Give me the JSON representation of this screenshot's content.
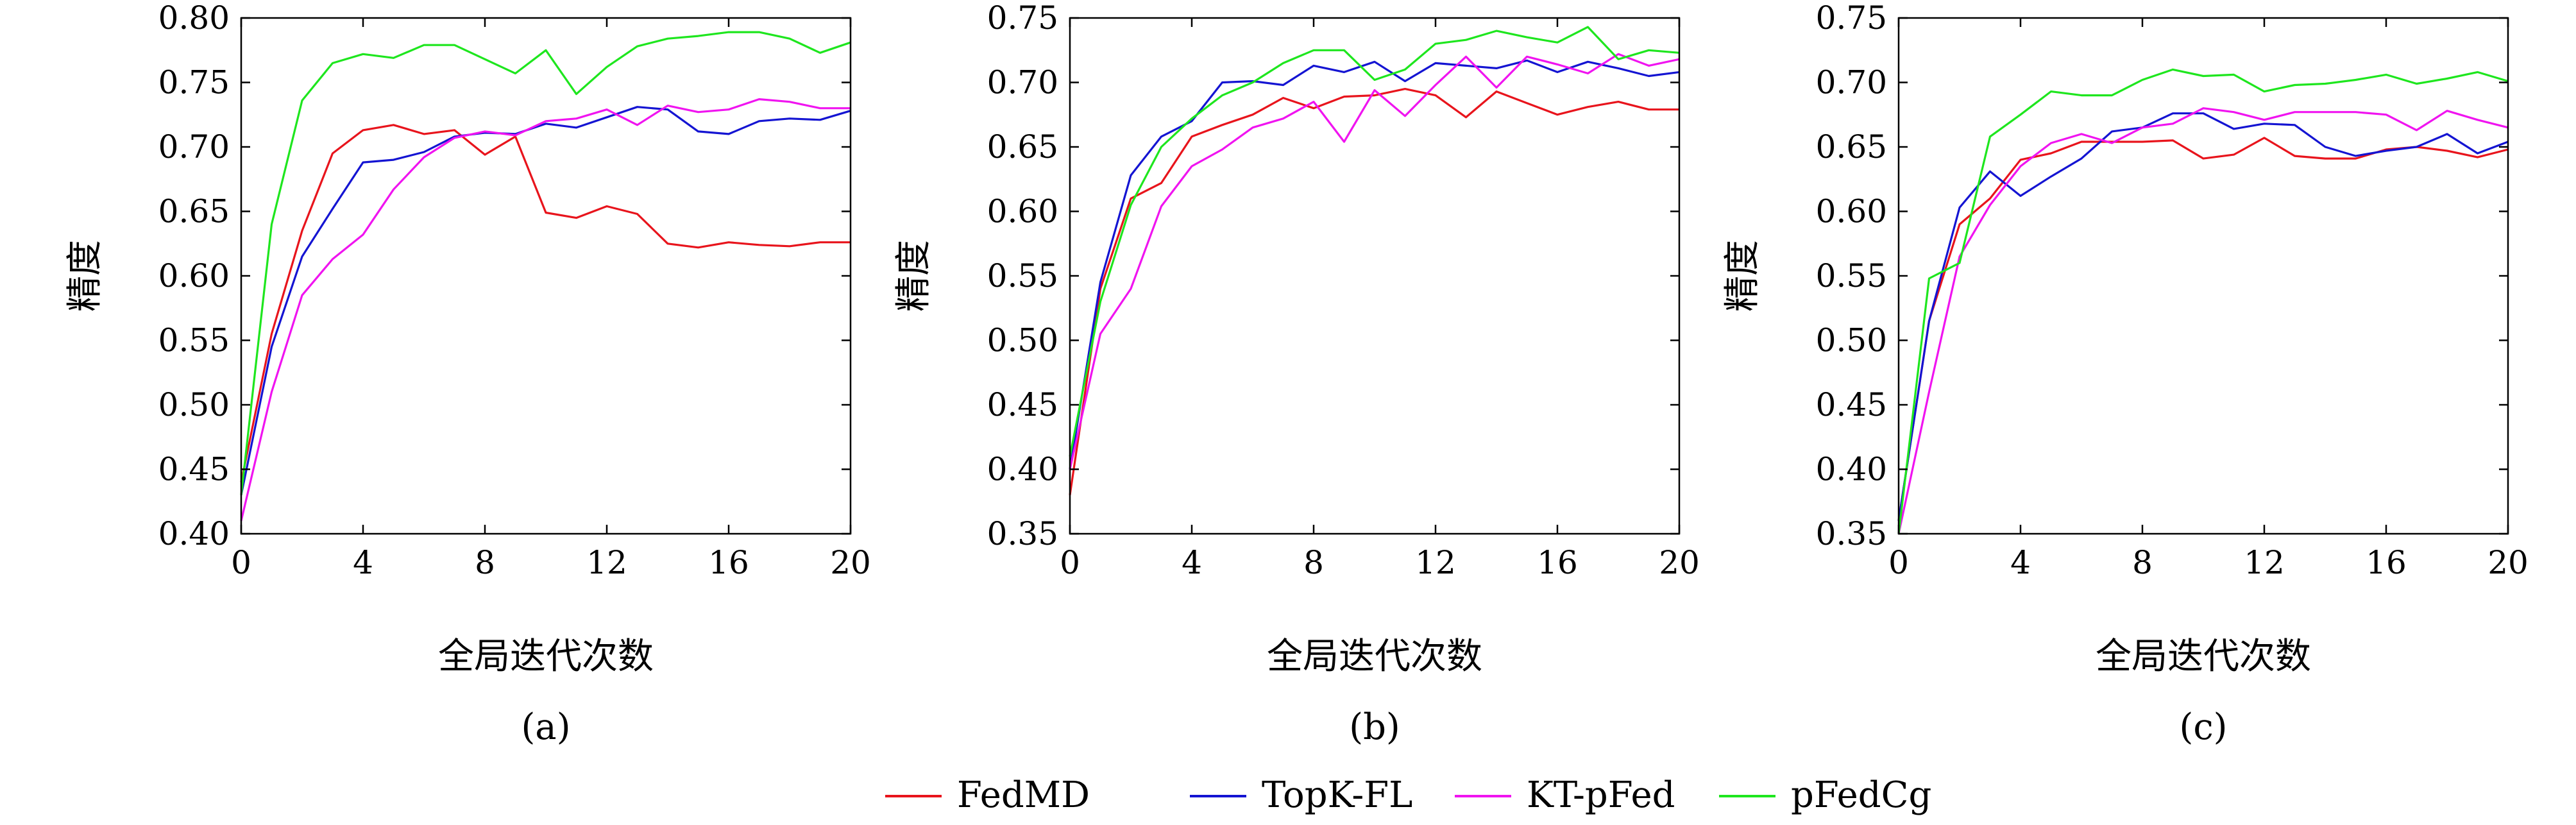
{
  "chart_data": [
    {
      "type": "line",
      "caption": "(a)",
      "xlabel": "全局迭代次数",
      "ylabel": "精度",
      "xlim": [
        0,
        20
      ],
      "ylim": [
        0.4,
        0.8
      ],
      "xticks": [
        0,
        4,
        8,
        12,
        16,
        20
      ],
      "yticks": [
        0.4,
        0.45,
        0.5,
        0.55,
        0.6,
        0.65,
        0.7,
        0.75,
        0.8
      ],
      "ytick_labels": [
        "0.40",
        "0.45",
        "0.50",
        "0.55",
        "0.60",
        "0.65",
        "0.70",
        "0.75",
        "0.80"
      ],
      "x": [
        0,
        1,
        2,
        3,
        4,
        5,
        6,
        7,
        8,
        9,
        10,
        11,
        12,
        13,
        14,
        15,
        16,
        17,
        18,
        19,
        20
      ],
      "series": [
        {
          "name": "FedMD",
          "values": [
            0.44,
            0.555,
            0.635,
            0.695,
            0.713,
            0.717,
            0.71,
            0.713,
            0.694,
            0.708,
            0.649,
            0.645,
            0.654,
            0.648,
            0.625,
            0.622,
            0.626,
            0.624,
            0.623,
            0.626,
            0.626
          ]
        },
        {
          "name": "TopK-FL",
          "values": [
            0.43,
            0.545,
            0.615,
            0.652,
            0.688,
            0.69,
            0.696,
            0.708,
            0.711,
            0.71,
            0.718,
            0.715,
            0.723,
            0.731,
            0.729,
            0.712,
            0.71,
            0.72,
            0.722,
            0.721,
            0.728
          ]
        },
        {
          "name": "KT-pFed",
          "values": [
            0.41,
            0.51,
            0.585,
            0.613,
            0.632,
            0.667,
            0.692,
            0.707,
            0.712,
            0.709,
            0.72,
            0.722,
            0.729,
            0.717,
            0.732,
            0.727,
            0.729,
            0.737,
            0.735,
            0.73,
            0.73
          ]
        },
        {
          "name": "pFedCg",
          "values": [
            0.43,
            0.64,
            0.736,
            0.765,
            0.772,
            0.769,
            0.779,
            0.779,
            0.768,
            0.757,
            0.775,
            0.741,
            0.762,
            0.778,
            0.784,
            0.786,
            0.789,
            0.789,
            0.784,
            0.773,
            0.781
          ]
        }
      ]
    },
    {
      "type": "line",
      "caption": "(b)",
      "xlabel": "全局迭代次数",
      "ylabel": "精度",
      "xlim": [
        0,
        20
      ],
      "ylim": [
        0.35,
        0.75
      ],
      "xticks": [
        0,
        4,
        8,
        12,
        16,
        20
      ],
      "yticks": [
        0.35,
        0.4,
        0.45,
        0.5,
        0.55,
        0.6,
        0.65,
        0.7,
        0.75
      ],
      "ytick_labels": [
        "0.35",
        "0.40",
        "0.45",
        "0.50",
        "0.55",
        "0.60",
        "0.65",
        "0.70",
        "0.75"
      ],
      "x": [
        0,
        1,
        2,
        3,
        4,
        5,
        6,
        7,
        8,
        9,
        10,
        11,
        12,
        13,
        14,
        15,
        16,
        17,
        18,
        19,
        20
      ],
      "series": [
        {
          "name": "FedMD",
          "values": [
            0.38,
            0.54,
            0.61,
            0.622,
            0.658,
            0.667,
            0.675,
            0.688,
            0.68,
            0.689,
            0.69,
            0.695,
            0.69,
            0.673,
            0.693,
            0.684,
            0.675,
            0.681,
            0.685,
            0.679,
            0.679
          ]
        },
        {
          "name": "TopK-FL",
          "values": [
            0.4,
            0.545,
            0.628,
            0.658,
            0.67,
            0.7,
            0.701,
            0.698,
            0.713,
            0.708,
            0.716,
            0.701,
            0.715,
            0.713,
            0.711,
            0.717,
            0.708,
            0.716,
            0.711,
            0.705,
            0.708
          ]
        },
        {
          "name": "KT-pFed",
          "values": [
            0.4,
            0.505,
            0.54,
            0.604,
            0.635,
            0.648,
            0.665,
            0.672,
            0.685,
            0.654,
            0.694,
            0.674,
            0.698,
            0.72,
            0.696,
            0.72,
            0.714,
            0.707,
            0.722,
            0.713,
            0.718
          ]
        },
        {
          "name": "pFedCg",
          "values": [
            0.41,
            0.53,
            0.605,
            0.65,
            0.672,
            0.69,
            0.7,
            0.715,
            0.725,
            0.725,
            0.702,
            0.71,
            0.73,
            0.733,
            0.74,
            0.735,
            0.731,
            0.743,
            0.718,
            0.725,
            0.723
          ]
        }
      ]
    },
    {
      "type": "line",
      "caption": "(c)",
      "xlabel": "全局迭代次数",
      "ylabel": "精度",
      "xlim": [
        0,
        20
      ],
      "ylim": [
        0.35,
        0.75
      ],
      "xticks": [
        0,
        4,
        8,
        12,
        16,
        20
      ],
      "yticks": [
        0.35,
        0.4,
        0.45,
        0.5,
        0.55,
        0.6,
        0.65,
        0.7,
        0.75
      ],
      "ytick_labels": [
        "0.35",
        "0.40",
        "0.45",
        "0.50",
        "0.55",
        "0.60",
        "0.65",
        "0.70",
        "0.75"
      ],
      "x": [
        0,
        1,
        2,
        3,
        4,
        5,
        6,
        7,
        8,
        9,
        10,
        11,
        12,
        13,
        14,
        15,
        16,
        17,
        18,
        19,
        20
      ],
      "series": [
        {
          "name": "FedMD",
          "values": [
            0.36,
            0.515,
            0.59,
            0.61,
            0.64,
            0.645,
            0.654,
            0.654,
            0.654,
            0.655,
            0.641,
            0.644,
            0.657,
            0.643,
            0.641,
            0.641,
            0.648,
            0.65,
            0.647,
            0.642,
            0.648
          ]
        },
        {
          "name": "TopK-FL",
          "values": [
            0.36,
            0.515,
            0.603,
            0.631,
            0.612,
            0.627,
            0.641,
            0.662,
            0.665,
            0.676,
            0.676,
            0.664,
            0.668,
            0.667,
            0.65,
            0.643,
            0.647,
            0.65,
            0.66,
            0.645,
            0.654
          ]
        },
        {
          "name": "KT-pFed",
          "values": [
            0.35,
            0.46,
            0.565,
            0.605,
            0.635,
            0.653,
            0.66,
            0.653,
            0.665,
            0.668,
            0.68,
            0.677,
            0.671,
            0.677,
            0.677,
            0.677,
            0.675,
            0.663,
            0.678,
            0.671,
            0.665
          ]
        },
        {
          "name": "pFedCg",
          "values": [
            0.35,
            0.548,
            0.56,
            0.658,
            0.675,
            0.693,
            0.69,
            0.69,
            0.702,
            0.71,
            0.705,
            0.706,
            0.693,
            0.698,
            0.699,
            0.702,
            0.706,
            0.699,
            0.703,
            0.708,
            0.701
          ]
        }
      ]
    }
  ],
  "legend": {
    "position": "bottom-center",
    "items": [
      {
        "name": "FedMD",
        "color": "#e8141c"
      },
      {
        "name": "TopK-FL",
        "color": "#1414d2"
      },
      {
        "name": "KT-pFed",
        "color": "#f014f0"
      },
      {
        "name": "pFedCg",
        "color": "#1ee61e"
      }
    ]
  },
  "colors": {
    "FedMD": "#e8141c",
    "TopK-FL": "#1414d2",
    "KT-pFed": "#f014f0",
    "pFedCg": "#1ee61e"
  }
}
